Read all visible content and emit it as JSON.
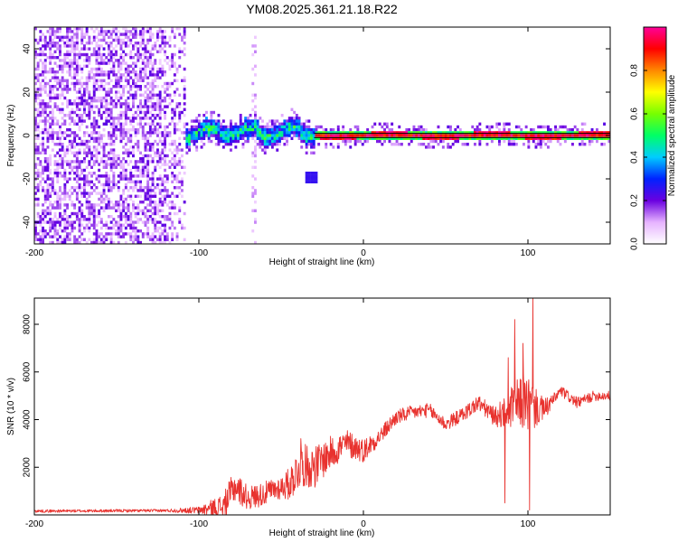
{
  "figure_title": "YM08.2025.361.21.18.R22",
  "chart_data": [
    {
      "type": "heatmap",
      "xlabel": "Height of straight line (km)",
      "ylabel": "Frequency (Hz)",
      "xlim": [
        -200,
        150
      ],
      "ylim": [
        -50,
        50
      ],
      "xticks": [
        -200,
        -100,
        0,
        100
      ],
      "yticks": [
        -40,
        -20,
        0,
        20,
        40
      ],
      "colorbar": {
        "label": "Normalized spectral amplitude",
        "range": [
          0,
          1
        ],
        "ticks": [
          "0.0",
          "0.2",
          "0.4",
          "0.6",
          "0.8"
        ],
        "tick_values": [
          0,
          0.2,
          0.4,
          0.6,
          0.8
        ]
      },
      "features": {
        "noise_region_x": [
          -200,
          -108
        ],
        "sparse_column_x": [
          -68,
          -65
        ],
        "signal_band_start_x": -108,
        "signal_center_frequency": 0,
        "signal_peak_amplitude": 1.0,
        "noise_amplitude_range": [
          0.05,
          0.2
        ],
        "reference_line_frequencies": [
          -1,
          1
        ]
      }
    },
    {
      "type": "line",
      "xlabel": "Height of straight line (km)",
      "ylabel": "SNR (10 * v/v)",
      "xlim": [
        -200,
        150
      ],
      "ylim": [
        0,
        9100
      ],
      "xticks": [
        -200,
        -100,
        0,
        100
      ],
      "yticks": [
        2000,
        4000,
        6000,
        8000
      ],
      "series": [
        {
          "color": "#e8322e",
          "trend": {
            "x": [
              -200,
              -120,
              -100,
              -85,
              -78,
              -70,
              -60,
              -45,
              -38,
              -30,
              -20,
              -10,
              0,
              10,
              20,
              30,
              40,
              50,
              60,
              70,
              80,
              90,
              98,
              103,
              110,
              120,
              130,
              140,
              150
            ],
            "y": [
              160,
              180,
              200,
              350,
              1200,
              700,
              900,
              1300,
              2100,
              2000,
              2600,
              3000,
              2700,
              3300,
              4100,
              4300,
              4400,
              3800,
              4200,
              4700,
              4100,
              4500,
              4800,
              4500,
              4400,
              5200,
              4700,
              5000,
              5000
            ]
          },
          "noise_amplitude": {
            "x": [
              -200,
              -120,
              -100,
              -80,
              -70,
              -50,
              -40,
              -30,
              -20,
              0,
              10,
              30,
              60,
              80,
              90,
              100,
              106,
              115,
              150
            ],
            "y": [
              60,
              60,
              150,
              700,
              500,
              500,
              900,
              900,
              700,
              500,
              350,
              300,
              300,
              400,
              900,
              1300,
              700,
              250,
              200
            ]
          },
          "spikes": [
            {
              "x": -38,
              "y": 3200
            },
            {
              "x": -30,
              "y": 2400
            },
            {
              "x": 88,
              "y": 6600
            },
            {
              "x": 92,
              "y": 8200
            },
            {
              "x": 97,
              "y": 7200
            },
            {
              "x": 103,
              "y": 9100
            },
            {
              "x": 101,
              "y": 200
            },
            {
              "x": 86,
              "y": 500
            }
          ]
        }
      ]
    }
  ]
}
